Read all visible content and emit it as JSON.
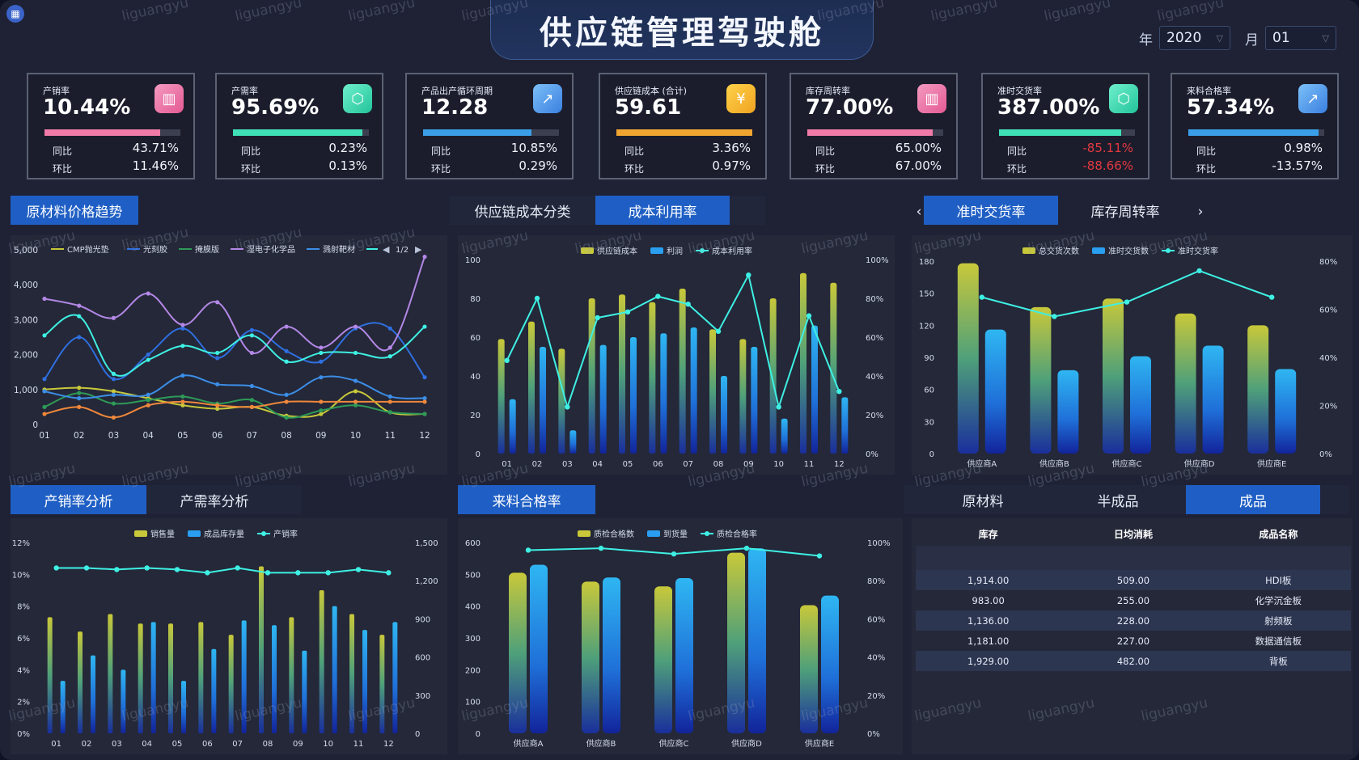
{
  "header": {
    "title": "供应链管理驾驶舱",
    "year_label": "年",
    "year_value": "2020",
    "month_label": "月",
    "month_value": "01",
    "app_icon": "grid-icon"
  },
  "kpis": [
    {
      "label": "产销率",
      "value": "10.44%",
      "icon": "bar-chart-icon",
      "color": "#f07aa8",
      "progress": 0.85,
      "yoy_label": "同比",
      "yoy": "43.71%",
      "mom_label": "环比",
      "mom": "11.46%",
      "yoy_neg": false,
      "mom_neg": false
    },
    {
      "label": "产需率",
      "value": "95.69%",
      "icon": "cube-icon",
      "color": "#3fe0b6",
      "progress": 0.95,
      "yoy_label": "同比",
      "yoy": "0.23%",
      "mom_label": "环比",
      "mom": "0.13%",
      "yoy_neg": false,
      "mom_neg": false
    },
    {
      "label": "产品出产循环周期",
      "value": "12.28",
      "icon": "trend-chart-icon",
      "color": "#3a9fe8",
      "progress": 0.8,
      "yoy_label": "同比",
      "yoy": "10.85%",
      "mom_label": "环比",
      "mom": "0.29%",
      "yoy_neg": false,
      "mom_neg": false
    },
    {
      "label": "供应链成本 (合计)",
      "value": "59.61",
      "icon": "yen-coin-icon",
      "color": "#f0a531",
      "progress": 1.0,
      "yoy_label": "同比",
      "yoy": "3.36%",
      "mom_label": "环比",
      "mom": "0.97%",
      "yoy_neg": false,
      "mom_neg": false
    },
    {
      "label": "库存周转率",
      "value": "77.00%",
      "icon": "bar-chart-icon",
      "color": "#f07aa8",
      "progress": 0.92,
      "yoy_label": "同比",
      "yoy": "65.00%",
      "mom_label": "环比",
      "mom": "67.00%",
      "yoy_neg": false,
      "mom_neg": false
    },
    {
      "label": "准时交货率",
      "value": "387.00%",
      "icon": "cube-icon",
      "color": "#3fe0b6",
      "progress": 0.9,
      "yoy_label": "同比",
      "yoy": "-85.11%",
      "mom_label": "环比",
      "mom": "-88.66%",
      "yoy_neg": true,
      "mom_neg": true
    },
    {
      "label": "来料合格率",
      "value": "57.34%",
      "icon": "trend-chart-icon",
      "color": "#3a9fe8",
      "progress": 0.96,
      "yoy_label": "同比",
      "yoy": "0.98%",
      "mom_label": "环比",
      "mom": "-13.57%",
      "yoy_neg": false,
      "mom_neg": false
    }
  ],
  "tabs": {
    "raw_price": "原材料价格趋势",
    "cost_category": "供应链成本分类",
    "cost_util": "成本利用率",
    "ontime": "准时交货率",
    "inventory_turn": "库存周转率",
    "sales_rate": "产销率分析",
    "demand_rate": "产需率分析",
    "incoming_quality": "来料合格率",
    "raw_material": "原材料",
    "semi_finished": "半成品",
    "finished": "成品",
    "prev_arrow": "‹",
    "next_arrow": "›"
  },
  "chart_data": [
    {
      "type": "line",
      "id": "raw_price",
      "categories": [
        "01",
        "02",
        "03",
        "04",
        "05",
        "06",
        "07",
        "08",
        "09",
        "10",
        "11",
        "12"
      ],
      "ylim": [
        0,
        5000
      ],
      "yticks": [
        "0",
        "1,000",
        "2,000",
        "3,000",
        "4,000",
        "5,000"
      ],
      "legend_page": "1/2",
      "series": [
        {
          "name": "CMP抛光垫",
          "color": "#c8c83a",
          "values": [
            1000,
            1050,
            950,
            750,
            550,
            450,
            500,
            250,
            300,
            950,
            350,
            300
          ]
        },
        {
          "name": "光刻胶",
          "color": "#2f6fe0",
          "values": [
            1300,
            2500,
            1300,
            2000,
            2750,
            1900,
            2700,
            2100,
            1800,
            2750,
            2750,
            1350
          ]
        },
        {
          "name": "掩膜版",
          "color": "#2e9a58",
          "values": [
            500,
            900,
            600,
            700,
            800,
            600,
            700,
            200,
            400,
            550,
            350,
            300
          ]
        },
        {
          "name": "湿电子化学品",
          "color": "#b387e6",
          "values": [
            3600,
            3400,
            3050,
            3750,
            2850,
            3500,
            2050,
            2800,
            2200,
            2800,
            2200,
            4800
          ]
        },
        {
          "name": "溅射靶材",
          "color": "#3c8ee8",
          "values": [
            950,
            750,
            850,
            850,
            1400,
            1150,
            1100,
            850,
            1350,
            1250,
            800,
            750
          ]
        },
        {
          "name": "",
          "color": "#3ef0e4",
          "values": [
            2550,
            3100,
            1450,
            1850,
            2250,
            2050,
            2550,
            1800,
            2050,
            2050,
            1950,
            2800
          ]
        },
        {
          "name": "",
          "color": "#f0873a",
          "values": [
            300,
            500,
            200,
            550,
            650,
            550,
            500,
            650,
            650,
            650,
            650,
            650
          ]
        }
      ]
    },
    {
      "type": "bar",
      "id": "cost_util",
      "categories": [
        "01",
        "02",
        "03",
        "04",
        "05",
        "06",
        "07",
        "08",
        "09",
        "10",
        "11",
        "12"
      ],
      "ylim": [
        0,
        100
      ],
      "yticks": [
        "0",
        "20",
        "40",
        "60",
        "80",
        "100"
      ],
      "y2ticks": [
        "0%",
        "20%",
        "40%",
        "60%",
        "80%",
        "100%"
      ],
      "series": [
        {
          "name": "供应链成本",
          "kind": "bar",
          "color": "#c8c83a",
          "values": [
            59,
            68,
            54,
            80,
            82,
            78,
            85,
            64,
            59,
            80,
            93,
            88
          ]
        },
        {
          "name": "利润",
          "kind": "bar",
          "color": "#2a9ef0",
          "values": [
            28,
            55,
            12,
            56,
            60,
            62,
            65,
            40,
            55,
            18,
            66,
            29
          ]
        },
        {
          "name": "成本利用率",
          "kind": "line",
          "color": "#3ef0e4",
          "values": [
            48,
            80,
            24,
            70,
            73,
            81,
            77,
            63,
            92,
            24,
            71,
            32
          ]
        }
      ]
    },
    {
      "type": "bar",
      "id": "ontime",
      "categories": [
        "供应商A",
        "供应商B",
        "供应商C",
        "供应商D",
        "供应商E"
      ],
      "ylim": [
        0,
        180
      ],
      "yticks": [
        "0",
        "30",
        "60",
        "90",
        "120",
        "150",
        "180"
      ],
      "y2ticks": [
        "0%",
        "20%",
        "40%",
        "60%",
        "80%"
      ],
      "series": [
        {
          "name": "总交货次数",
          "kind": "bar",
          "color": "#c8c83a",
          "values": [
            178,
            137,
            145,
            131,
            120
          ]
        },
        {
          "name": "准时交货数",
          "kind": "bar",
          "color": "#2a9ef0",
          "values": [
            116,
            78,
            91,
            101,
            79
          ]
        },
        {
          "name": "准时交货率",
          "kind": "line",
          "color": "#3ef0e4",
          "values": [
            65,
            57,
            63,
            76,
            65
          ]
        }
      ]
    },
    {
      "type": "bar",
      "id": "sales_rate",
      "categories": [
        "01",
        "02",
        "03",
        "04",
        "05",
        "06",
        "07",
        "08",
        "09",
        "10",
        "11",
        "12"
      ],
      "ylim": [
        0,
        12
      ],
      "yticks": [
        "0%",
        "2%",
        "4%",
        "6%",
        "8%",
        "10%",
        "12%"
      ],
      "y2ticks": [
        "0",
        "300",
        "600",
        "900",
        "1,200",
        "1,500"
      ],
      "series": [
        {
          "name": "销售量",
          "kind": "bar",
          "color": "#c8c83a",
          "values": [
            7.3,
            6.4,
            7.5,
            6.9,
            6.9,
            7.0,
            6.2,
            10.5,
            7.3,
            9.0,
            7.5,
            6.2
          ]
        },
        {
          "name": "成品库存量",
          "kind": "bar",
          "color": "#2a9ef0",
          "values": [
            3.3,
            4.9,
            4.0,
            7.0,
            3.3,
            5.3,
            7.1,
            6.8,
            5.2,
            8.0,
            6.5,
            7.0
          ]
        },
        {
          "name": "产销率",
          "kind": "line",
          "color": "#3ef0e4",
          "values": [
            10.4,
            10.4,
            10.3,
            10.4,
            10.3,
            10.1,
            10.4,
            10.1,
            10.1,
            10.1,
            10.3,
            10.1
          ]
        }
      ]
    },
    {
      "type": "bar",
      "id": "incoming_quality",
      "categories": [
        "供应商A",
        "供应商B",
        "供应商C",
        "供应商D",
        "供应商E"
      ],
      "ylim": [
        0,
        600
      ],
      "yticks": [
        "0",
        "100",
        "200",
        "300",
        "400",
        "500",
        "600"
      ],
      "y2ticks": [
        "0%",
        "20%",
        "40%",
        "60%",
        "80%",
        "100%"
      ],
      "series": [
        {
          "name": "质检合格数",
          "kind": "bar",
          "color": "#c8c83a",
          "values": [
            505,
            477,
            462,
            568,
            403
          ]
        },
        {
          "name": "到货量",
          "kind": "bar",
          "color": "#2a9ef0",
          "values": [
            530,
            490,
            488,
            582,
            433
          ]
        },
        {
          "name": "质检合格率",
          "kind": "line",
          "color": "#3ef0e4",
          "values": [
            96,
            97,
            94,
            97,
            93
          ]
        }
      ]
    }
  ],
  "inventory_table": {
    "columns": [
      "库存",
      "日均消耗",
      "成品名称"
    ],
    "rows": [
      [
        "1,914.00",
        "509.00",
        "HDI板"
      ],
      [
        "983.00",
        "255.00",
        "化学沉金板"
      ],
      [
        "1,136.00",
        "228.00",
        "射频板"
      ],
      [
        "1,181.00",
        "227.00",
        "数据通信板"
      ],
      [
        "1,929.00",
        "482.00",
        "背板"
      ]
    ]
  },
  "watermark": "liguangyu"
}
